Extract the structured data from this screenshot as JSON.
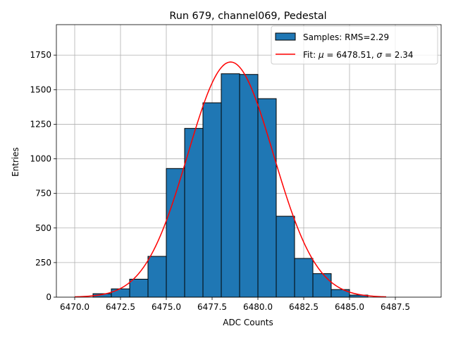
{
  "chart_data": {
    "type": "bar",
    "title": "Run 679, channel069, Pedestal",
    "xlabel": "ADC Counts",
    "ylabel": "Entries",
    "xlim": [
      6469.0,
      6490.0
    ],
    "ylim": [
      0,
      1970
    ],
    "grid": true,
    "legend_placement": "top-right",
    "xticks": [
      6470.0,
      6472.5,
      6475.0,
      6477.5,
      6480.0,
      6482.5,
      6485.0,
      6487.5
    ],
    "xtick_labels": [
      "6470.0",
      "6472.5",
      "6475.0",
      "6477.5",
      "6480.0",
      "6482.5",
      "6485.0",
      "6487.5"
    ],
    "yticks": [
      0,
      250,
      500,
      750,
      1000,
      1250,
      1500,
      1750
    ],
    "ytick_labels": [
      "0",
      "250",
      "500",
      "750",
      "1000",
      "1250",
      "1500",
      "1750"
    ],
    "histogram": {
      "name": "Samples: RMS=2.29",
      "color": "#1f77b4",
      "edge_color": "#000000",
      "bin_edges": [
        6470,
        6471,
        6472,
        6473,
        6474,
        6475,
        6476,
        6477,
        6478,
        6479,
        6480,
        6481,
        6482,
        6483,
        6484,
        6485,
        6486,
        6487,
        6488,
        6489
      ],
      "values": [
        0,
        25,
        60,
        130,
        295,
        930,
        1220,
        1405,
        1615,
        1610,
        1435,
        585,
        280,
        170,
        55,
        15,
        0,
        0,
        0
      ]
    },
    "fit": {
      "name_prefix": "Fit: ",
      "name_mu": "μ",
      "name_mid": " = 6478.51, ",
      "name_sigma": "σ",
      "name_end": " = 2.34",
      "color": "#ff0000",
      "mu": 6478.51,
      "sigma": 2.34,
      "amplitude": 1700,
      "x_range": [
        6470,
        6487
      ]
    }
  }
}
